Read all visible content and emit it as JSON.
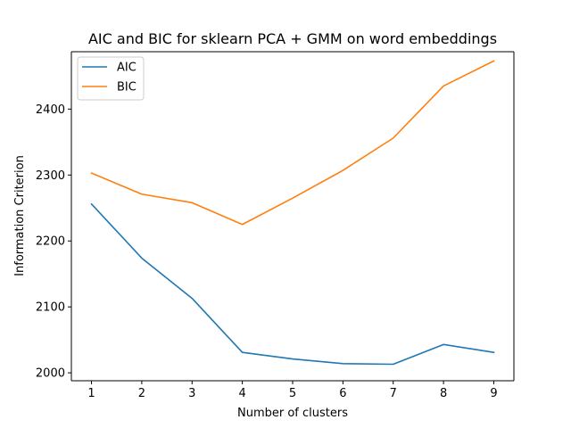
{
  "chart_data": {
    "type": "line",
    "title": "AIC and BIC for sklearn PCA + GMM on word embeddings",
    "xlabel": "Number of clusters",
    "ylabel": "Information Criterion",
    "x": [
      1,
      2,
      3,
      4,
      5,
      6,
      7,
      8,
      9
    ],
    "xticks": [
      "1",
      "2",
      "3",
      "4",
      "5",
      "6",
      "7",
      "8",
      "9"
    ],
    "yticks": [
      "2000",
      "2100",
      "2200",
      "2300",
      "2400"
    ],
    "xlim": [
      0.6,
      9.4
    ],
    "ylim": [
      1988,
      2487
    ],
    "grid": false,
    "legend_position": "top-left",
    "series": [
      {
        "name": "AIC",
        "color": "#1f77b4",
        "values": [
          2256,
          2174,
          2113,
          2031,
          2021,
          2014,
          2013,
          2043,
          2031
        ]
      },
      {
        "name": "BIC",
        "color": "#ff7f0e",
        "values": [
          2303,
          2271,
          2258,
          2225,
          2265,
          2307,
          2356,
          2435,
          2473
        ]
      }
    ]
  }
}
